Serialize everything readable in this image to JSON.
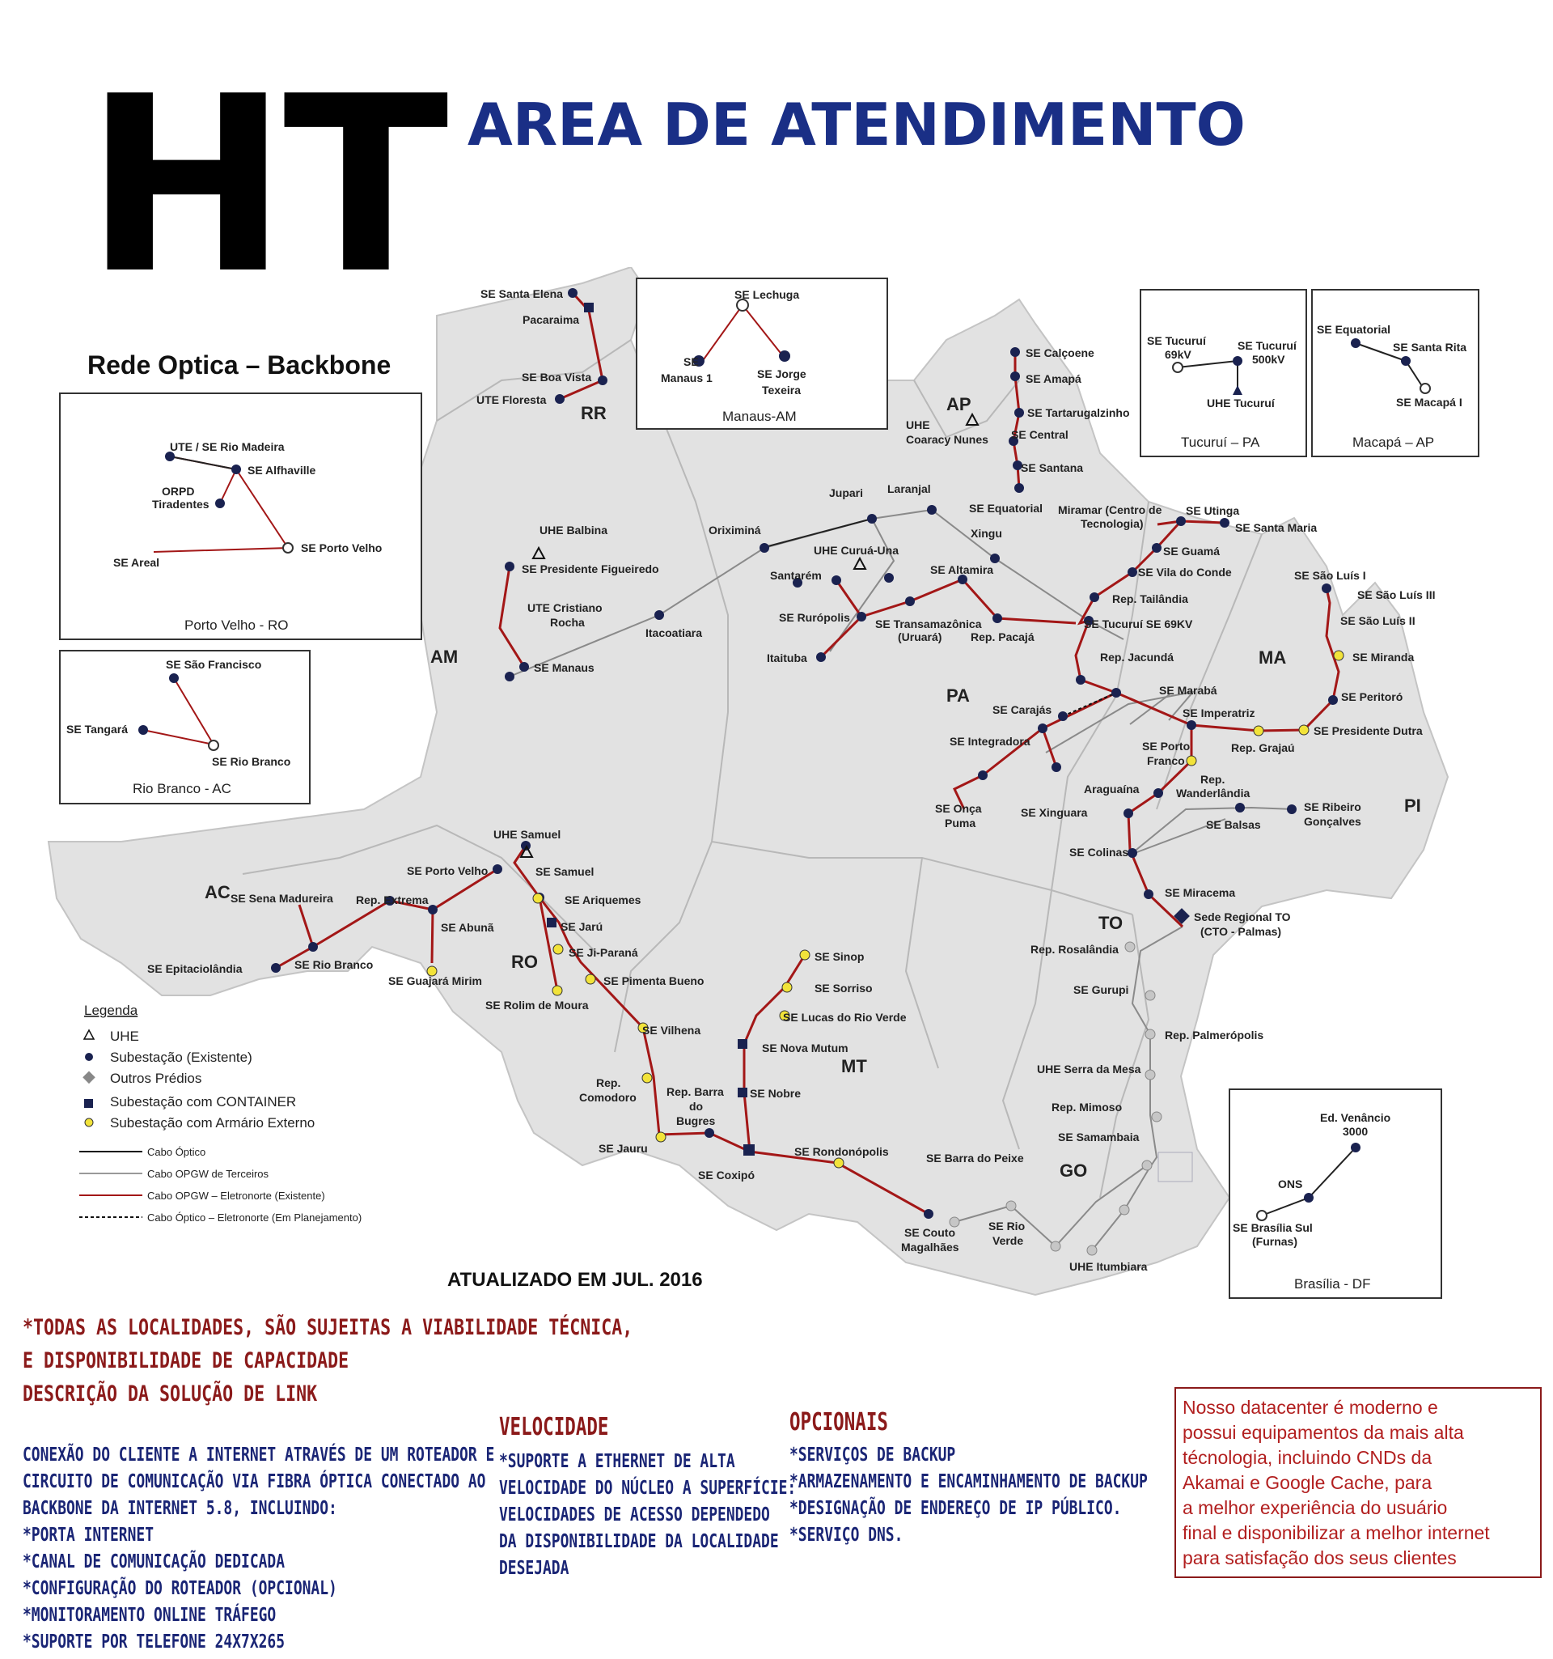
{
  "header": {
    "logo": "HT",
    "title": "AREA DE ATENDIMENTO",
    "title_color": "#1a2f86"
  },
  "map": {
    "title": "Rede Optica – Backbone",
    "updated": "ATUALIZADO EM JUL. 2016",
    "state_labels": [
      "RR",
      "AP",
      "AM",
      "PA",
      "MA",
      "PI",
      "TO",
      "AC",
      "RO",
      "MT",
      "GO"
    ],
    "stations": [
      "SE Santa Elena",
      "Pacaraima",
      "SE Boa Vista",
      "UTE Floresta",
      "SE Calçoene",
      "SE Amapá",
      "SE Tartarugalzinho",
      "SE Central",
      "SE Santana",
      "UHE Coaracy Nunes",
      "SE Equatorial",
      "Xingu",
      "Jupari",
      "Laranjal",
      "Oriximiná",
      "UHE Balbina",
      "UHE Curuá-Una",
      "Santarém",
      "SE Rurópolis",
      "Itaituba",
      "SE Altamira",
      "SE Transamazônica (Uruará)",
      "Rep. Pacajá",
      "SE Presidente Figueiredo",
      "UTE Cristiano Rocha",
      "Itacoatiara",
      "SE Manaus",
      "Miramar (Centro de Tecnologia)",
      "SE Utinga",
      "SE Santa Maria",
      "SE Guamá",
      "SE Vila do Conde",
      "Rep. Tailândia",
      "SE Tucuruí SE 69KV",
      "Rep. Jacundá",
      "SE Marabá",
      "SE Carajás",
      "SE Integradora",
      "SE Onça Puma",
      "SE Xinguara",
      "SE São Luís I",
      "SE São Luís III",
      "SE São Luís II",
      "SE Miranda",
      "SE Peritoró",
      "SE Presidente Dutra",
      "Rep. Grajaú",
      "SE Imperatriz",
      "SE Porto Franco",
      "Rep. Wanderlândia",
      "Araguaína",
      "SE Ribeiro Gonçalves",
      "SE Balsas",
      "SE Colinas",
      "SE Miracema",
      "Sede Regional TO (CTO - Palmas)",
      "Rep. Rosalândia",
      "SE Gurupi",
      "Rep. Palmerópolis",
      "UHE Serra da Mesa",
      "Rep. Mimoso",
      "SE Samambaia",
      "UHE Itumbiara",
      "SE Rio Verde",
      "SE Couto Magalhães",
      "SE Barra do Peixe",
      "SE Rondonópolis",
      "SE Coxipó",
      "Rep. Barra do Bugres",
      "SE Nobre",
      "SE Nova Mutum",
      "SE Lucas do Rio Verde",
      "SE Sorriso",
      "SE Sinop",
      "UHE Samuel",
      "SE Porto Velho",
      "SE Samuel",
      "SE Ariquemes",
      "SE Jarú",
      "SE Ji-Paraná",
      "SE Rolim de Moura",
      "SE Pimenta Bueno",
      "SE Vilhena",
      "Rep. Comodoro",
      "SE Jauru",
      "SE Sena Madureira",
      "Rep. Extrema",
      "SE Abunã",
      "SE Guajará Mirim",
      "SE Rio Branco",
      "SE Epitaciolândia"
    ],
    "insets": [
      {
        "name": "Manaus-AM",
        "labels": [
          "SE Lechuga",
          "SE Manaus 1",
          "SE Jorge Texeira"
        ]
      },
      {
        "name": "Tucuruí – PA",
        "labels": [
          "SE Tucuruí 69kV",
          "SE Tucuruí 500kV",
          "UHE Tucuruí"
        ]
      },
      {
        "name": "Macapá – AP",
        "labels": [
          "SE Equatorial",
          "SE Santa Rita",
          "SE Macapá I"
        ]
      },
      {
        "name": "Porto Velho - RO",
        "labels": [
          "UTE / SE Rio Madeira",
          "SE Alfhaville",
          "ORPD Tiradentes",
          "SE Areal",
          "SE Porto Velho"
        ]
      },
      {
        "name": "Rio Branco - AC",
        "labels": [
          "SE São Francisco",
          "SE Tangará",
          "SE Rio Branco"
        ]
      },
      {
        "name": "Brasília - DF",
        "labels": [
          "Ed. Venâncio 3000",
          "ONS",
          "SE Brasília Sul (Furnas)"
        ]
      }
    ],
    "legend": {
      "title": "Legenda",
      "items": [
        "UHE",
        "Subestação (Existente)",
        "Outros Prédios",
        "Subestação com CONTAINER",
        "Subestação com Armário Externo"
      ],
      "lines": [
        "Cabo Óptico",
        "Cabo OPGW de Terceiros",
        "Cabo OPGW – Eletronorte (Existente)",
        "Cabo Óptico – Eletronorte (Em Planejamento)"
      ]
    },
    "colors": {
      "land": "#e3e3e3",
      "line_red": "#a31717",
      "line_gray": "#8a8a8a",
      "node": "#1a2250",
      "marker_yellow": "#f2e33a"
    }
  },
  "notes": {
    "line1": "*TODAS AS LOCALIDADES, SÃO SUJEITAS A VIABILIDADE TÉCNICA,",
    "line2": "E DISPONIBILIDADE DE CAPACIDADE",
    "line3": "DESCRIÇÃO DA SOLUÇÃO DE LINK"
  },
  "description": {
    "lines": [
      "CONEXÃO DO CLIENTE A INTERNET ATRAVÉS DE UM ROTEADOR E",
      "CIRCUITO DE COMUNICAÇÃO VIA FIBRA ÓPTICA CONECTADO AO",
      "BACKBONE DA INTERNET 5.8, INCLUINDO:",
      "*PORTA INTERNET",
      "*CANAL DE COMUNICAÇÃO DEDICADA",
      "*CONFIGURAÇÃO DO ROTEADOR (OPCIONAL)",
      "*MONITORAMENTO ONLINE TRÁFEGO",
      "*SUPORTE POR TELEFONE 24X7X265"
    ]
  },
  "velocidade": {
    "title": "VELOCIDADE",
    "lines": [
      "*SUPORTE A ETHERNET DE ALTA",
      "VELOCIDADE DO NÚCLEO A SUPERFÍCIE:",
      "VELOCIDADES DE ACESSO DEPENDEDO",
      "DA DISPONIBILIDADE DA LOCALIDADE",
      "DESEJADA"
    ]
  },
  "opcionais": {
    "title": "OPCIONAIS",
    "lines": [
      "*SERVIÇOS DE BACKUP",
      "*ARMAZENAMENTO E ENCAMINHAMENTO DE BACKUP",
      "*DESIGNAÇÃO DE ENDEREÇO DE IP PÚBLICO.",
      "*SERVIÇO DNS."
    ]
  },
  "datacenter": {
    "lines": [
      "Nosso datacenter é moderno e",
      "possui equipamentos da mais alta",
      "técnologia, incluindo CNDs da",
      "Akamai e Google Cache, para",
      "a melhor experiência do usuário",
      "final e disponibilizar a melhor internet",
      "para satisfação dos seus clientes"
    ]
  }
}
